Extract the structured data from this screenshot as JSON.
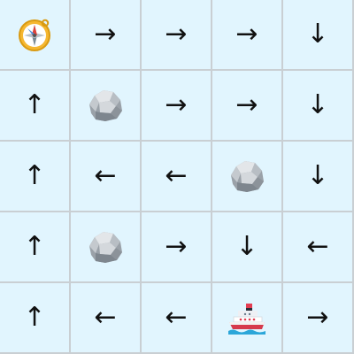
{
  "board": {
    "rows": 5,
    "cols": 5,
    "cells": [
      [
        {
          "type": "start",
          "icon": "compass-icon"
        },
        {
          "type": "arrow",
          "dir": "right",
          "glyph": "→"
        },
        {
          "type": "arrow",
          "dir": "right",
          "glyph": "→"
        },
        {
          "type": "arrow",
          "dir": "right",
          "glyph": "→"
        },
        {
          "type": "arrow",
          "dir": "down",
          "glyph": "↓"
        }
      ],
      [
        {
          "type": "arrow",
          "dir": "up",
          "glyph": "↑"
        },
        {
          "type": "obstacle",
          "icon": "rock-icon"
        },
        {
          "type": "arrow",
          "dir": "right",
          "glyph": "→"
        },
        {
          "type": "arrow",
          "dir": "right",
          "glyph": "→"
        },
        {
          "type": "arrow",
          "dir": "down",
          "glyph": "↓"
        }
      ],
      [
        {
          "type": "arrow",
          "dir": "up",
          "glyph": "↑"
        },
        {
          "type": "arrow",
          "dir": "left",
          "glyph": "←"
        },
        {
          "type": "arrow",
          "dir": "left",
          "glyph": "←"
        },
        {
          "type": "obstacle",
          "icon": "rock-icon"
        },
        {
          "type": "arrow",
          "dir": "down",
          "glyph": "↓"
        }
      ],
      [
        {
          "type": "arrow",
          "dir": "up",
          "glyph": "↑"
        },
        {
          "type": "obstacle",
          "icon": "rock-icon"
        },
        {
          "type": "arrow",
          "dir": "right",
          "glyph": "→"
        },
        {
          "type": "arrow",
          "dir": "down",
          "glyph": "↓"
        },
        {
          "type": "arrow",
          "dir": "left",
          "glyph": "←"
        }
      ],
      [
        {
          "type": "arrow",
          "dir": "up",
          "glyph": "↑"
        },
        {
          "type": "arrow",
          "dir": "left",
          "glyph": "←"
        },
        {
          "type": "arrow",
          "dir": "left",
          "glyph": "←"
        },
        {
          "type": "goal",
          "icon": "ship-icon"
        },
        {
          "type": "arrow",
          "dir": "right",
          "glyph": "→"
        }
      ]
    ]
  },
  "colors": {
    "cell_bg": "#e1f5fe",
    "grid_line": "#c9cfd3",
    "arrow": "#111111"
  }
}
